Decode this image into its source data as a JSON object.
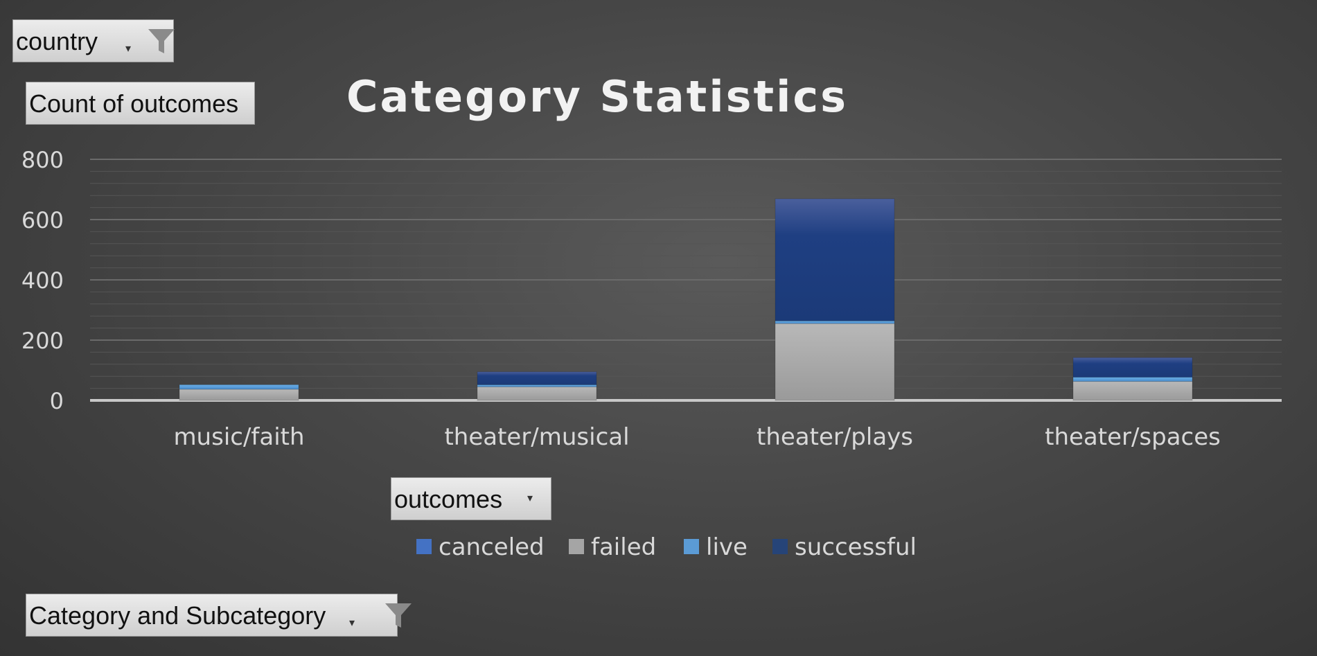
{
  "filters": {
    "country_label": "country",
    "values_label": "Count of outcomes",
    "legend_field_label": "outcomes",
    "axis_field_label": "Category and Subcategory"
  },
  "icons": {
    "filter": "funnel-icon",
    "dropdown": "chevron-down-icon"
  },
  "chart_data": {
    "type": "bar",
    "stacked": true,
    "title": "Category Statistics",
    "categories": [
      "music/faith",
      "theater/musical",
      "theater/plays",
      "theater/spaces"
    ],
    "series": [
      {
        "name": "canceled",
        "color": "#4472c4",
        "values": [
          0,
          0,
          0,
          0
        ]
      },
      {
        "name": "failed",
        "color": "#a5a5a5",
        "values": [
          37,
          45,
          255,
          63
        ]
      },
      {
        "name": "live",
        "color": "#5b9bd5",
        "values": [
          15,
          7,
          9,
          14
        ]
      },
      {
        "name": "successful",
        "color": "#264478",
        "values": [
          0,
          43,
          405,
          65
        ]
      }
    ],
    "ylim": [
      0,
      800
    ],
    "yticks": [
      0,
      200,
      400,
      600,
      800
    ],
    "grid": true,
    "legend_position": "bottom"
  }
}
